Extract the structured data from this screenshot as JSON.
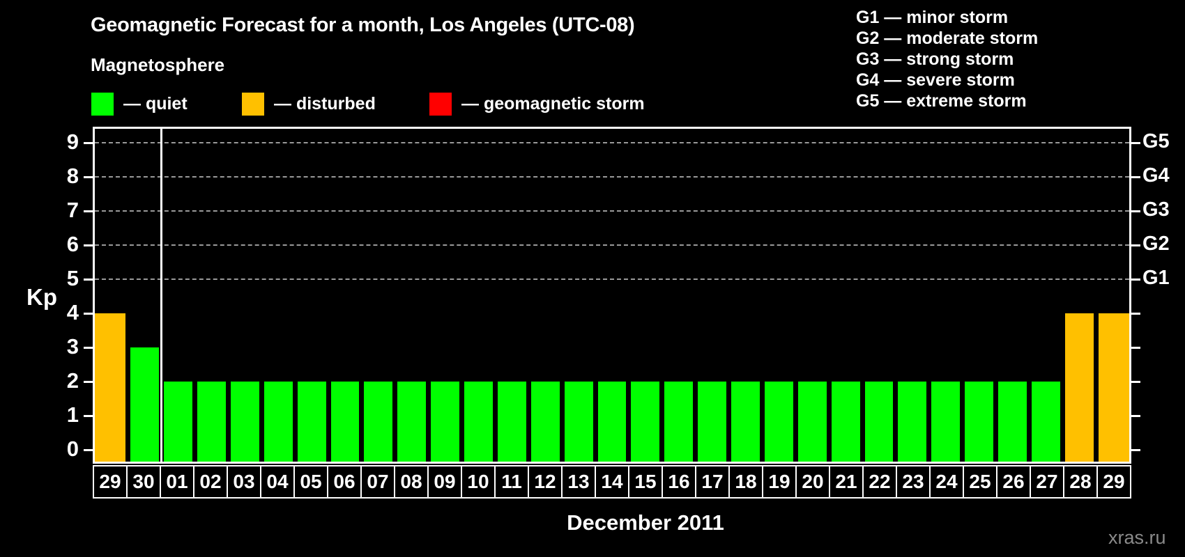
{
  "title": "Geomagnetic Forecast for a month, Los Angeles (UTC-08)",
  "subtitle": "Magnetosphere",
  "legend": {
    "quiet": {
      "label": "— quiet",
      "color": "#00ff00"
    },
    "disturbed": {
      "label": "— disturbed",
      "color": "#ffc000"
    },
    "storm": {
      "label": "— geomagnetic storm",
      "color": "#ff0000"
    }
  },
  "storm_scale": {
    "lines": [
      "G1 — minor storm",
      "G2 — moderate storm",
      "G3 — strong storm",
      "G4 — severe storm",
      "G5 — extreme storm"
    ]
  },
  "watermark": "xras.ru",
  "chart_data": {
    "type": "bar",
    "title": "Geomagnetic Forecast for a month, Los Angeles (UTC-08)",
    "ylabel": "Kp",
    "xlabel": "December 2011",
    "ylim": [
      0,
      9
    ],
    "yticks": [
      0,
      1,
      2,
      3,
      4,
      5,
      6,
      7,
      8,
      9
    ],
    "grid": "horizontal dashed lines at Kp 5-9 only",
    "legend_position": "top-left",
    "right_axis_labels": [
      {
        "label": "G1",
        "kp": 5
      },
      {
        "label": "G2",
        "kp": 6
      },
      {
        "label": "G3",
        "kp": 7
      },
      {
        "label": "G4",
        "kp": 8
      },
      {
        "label": "G5",
        "kp": 9
      }
    ],
    "categories": [
      "29",
      "30",
      "01",
      "02",
      "03",
      "04",
      "05",
      "06",
      "07",
      "08",
      "09",
      "10",
      "11",
      "12",
      "13",
      "14",
      "15",
      "16",
      "17",
      "18",
      "19",
      "20",
      "21",
      "22",
      "23",
      "24",
      "25",
      "26",
      "27",
      "28",
      "29"
    ],
    "values": [
      4,
      3,
      2,
      2,
      2,
      2,
      2,
      2,
      2,
      2,
      2,
      2,
      2,
      2,
      2,
      2,
      2,
      2,
      2,
      2,
      2,
      2,
      2,
      2,
      2,
      2,
      2,
      2,
      2,
      4,
      4
    ],
    "statuses": [
      "disturbed",
      "quiet",
      "quiet",
      "quiet",
      "quiet",
      "quiet",
      "quiet",
      "quiet",
      "quiet",
      "quiet",
      "quiet",
      "quiet",
      "quiet",
      "quiet",
      "quiet",
      "quiet",
      "quiet",
      "quiet",
      "quiet",
      "quiet",
      "quiet",
      "quiet",
      "quiet",
      "quiet",
      "quiet",
      "quiet",
      "quiet",
      "quiet",
      "quiet",
      "disturbed",
      "disturbed"
    ],
    "status_colors": {
      "quiet": "#00ff00",
      "disturbed": "#ffc000",
      "storm": "#ff0000"
    },
    "month_separator_after_index": 1
  }
}
